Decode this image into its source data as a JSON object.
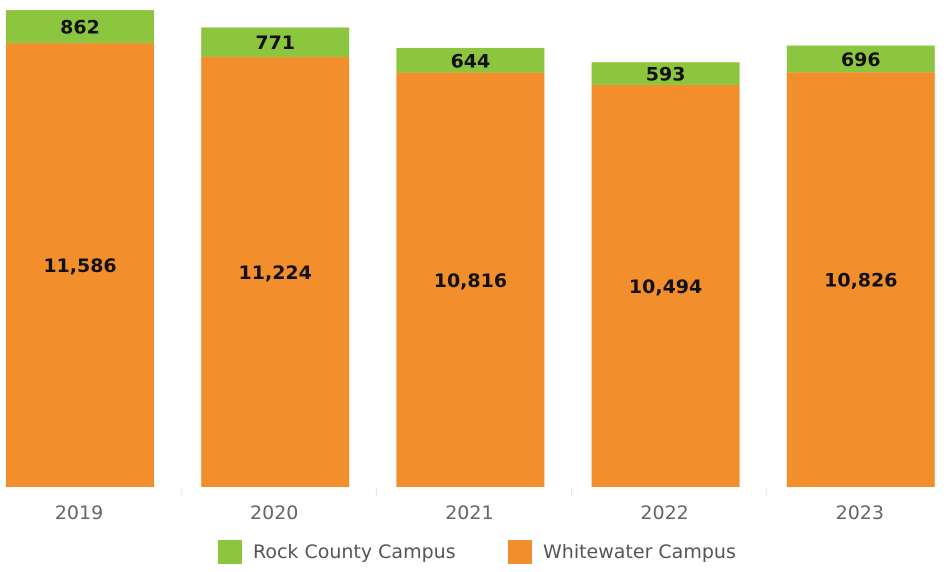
{
  "chart_data": {
    "type": "bar",
    "stacked": true,
    "categories": [
      "2019",
      "2020",
      "2021",
      "2022",
      "2023"
    ],
    "series": [
      {
        "name": "Whitewater Campus",
        "color": "#f28e2b",
        "values": [
          11586,
          11224,
          10816,
          10494,
          10826
        ],
        "labels": [
          "11,586",
          "11,224",
          "10,816",
          "10,494",
          "10,826"
        ]
      },
      {
        "name": "Rock County Campus",
        "color": "#8cc63f",
        "values": [
          862,
          771,
          644,
          593,
          696
        ],
        "labels": [
          "862",
          "771",
          "644",
          "593",
          "696"
        ]
      }
    ],
    "ylim": [
      0,
      12450
    ],
    "grid": false,
    "legend_position": "bottom"
  },
  "legend": {
    "items": [
      {
        "label": "Rock County Campus",
        "color": "#8cc63f"
      },
      {
        "label": "Whitewater Campus",
        "color": "#f28e2b"
      }
    ]
  }
}
